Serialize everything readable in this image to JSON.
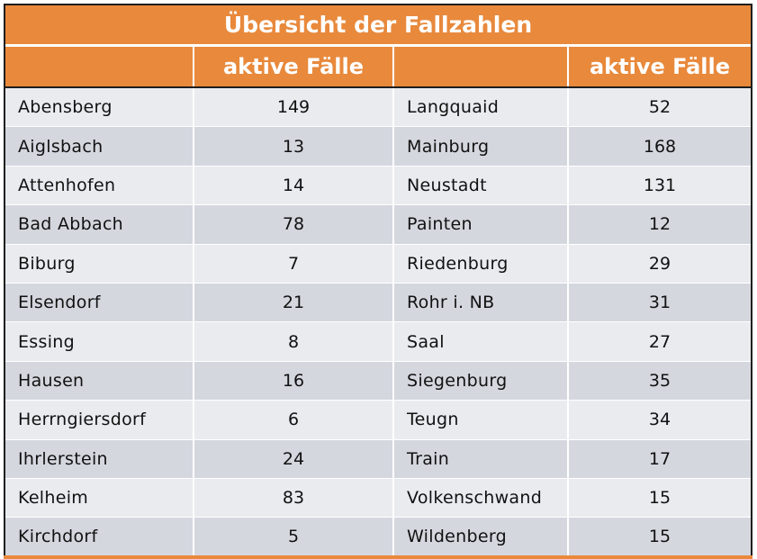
{
  "title": "Übersicht der Fallzahlen",
  "headers": [
    "",
    "aktive Fälle",
    "",
    "aktive Fälle"
  ],
  "rows": [
    {
      "left_name": "Abensberg",
      "left_value": "149",
      "right_name": "Langquaid",
      "right_value": "52"
    },
    {
      "left_name": "Aiglsbach",
      "left_value": "13",
      "right_name": "Mainburg",
      "right_value": "168"
    },
    {
      "left_name": "Attenhofen",
      "left_value": "14",
      "right_name": "Neustadt",
      "right_value": "131"
    },
    {
      "left_name": "Bad Abbach",
      "left_value": "78",
      "right_name": "Painten",
      "right_value": "12"
    },
    {
      "left_name": "Biburg",
      "left_value": "7",
      "right_name": "Riedenburg",
      "right_value": "29"
    },
    {
      "left_name": "Elsendorf",
      "left_value": "21",
      "right_name": "Rohr i. NB",
      "right_value": "31"
    },
    {
      "left_name": "Essing",
      "left_value": "8",
      "right_name": "Saal",
      "right_value": "27"
    },
    {
      "left_name": "Hausen",
      "left_value": "16",
      "right_name": "Siegenburg",
      "right_value": "35"
    },
    {
      "left_name": "Herrngiersdorf",
      "left_value": "6",
      "right_name": "Teugn",
      "right_value": "34"
    },
    {
      "left_name": "Ihrlerstein",
      "left_value": "24",
      "right_name": "Train",
      "right_value": "17"
    },
    {
      "left_name": "Kelheim",
      "left_value": "83",
      "right_name": "Volkenschwand",
      "right_value": "15"
    },
    {
      "left_name": "Kirchdorf",
      "left_value": "5",
      "right_name": "Wildenberg",
      "right_value": "15"
    }
  ],
  "colors": {
    "header_bg": "#e8893c",
    "row_light": "#eaebef",
    "row_dark": "#d5d7df",
    "border": "#1e1e1e"
  }
}
